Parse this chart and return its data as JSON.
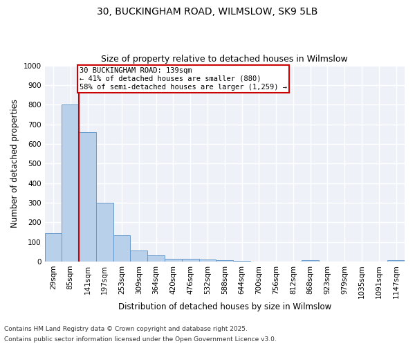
{
  "title_line1": "30, BUCKINGHAM ROAD, WILMSLOW, SK9 5LB",
  "title_line2": "Size of property relative to detached houses in Wilmslow",
  "xlabel": "Distribution of detached houses by size in Wilmslow",
  "ylabel": "Number of detached properties",
  "bin_labels": [
    "29sqm",
    "85sqm",
    "141sqm",
    "197sqm",
    "253sqm",
    "309sqm",
    "364sqm",
    "420sqm",
    "476sqm",
    "532sqm",
    "588sqm",
    "644sqm",
    "700sqm",
    "756sqm",
    "812sqm",
    "868sqm",
    "923sqm",
    "979sqm",
    "1035sqm",
    "1091sqm",
    "1147sqm"
  ],
  "bar_heights": [
    145,
    800,
    660,
    300,
    135,
    55,
    30,
    15,
    15,
    10,
    5,
    2,
    1,
    1,
    0,
    8,
    0,
    0,
    0,
    0,
    5
  ],
  "bar_color": "#b8d0ea",
  "bar_edge_color": "#6699cc",
  "property_line_x": 1.5,
  "property_line_color": "#cc0000",
  "annotation_text": "30 BUCKINGHAM ROAD: 139sqm\n← 41% of detached houses are smaller (880)\n58% of semi-detached houses are larger (1,259) →",
  "annotation_box_color": "#ffffff",
  "annotation_box_edge": "#cc0000",
  "ylim": [
    0,
    1000
  ],
  "yticks": [
    0,
    100,
    200,
    300,
    400,
    500,
    600,
    700,
    800,
    900,
    1000
  ],
  "background_color": "#eef2f8",
  "footer_line1": "Contains HM Land Registry data © Crown copyright and database right 2025.",
  "footer_line2": "Contains public sector information licensed under the Open Government Licence v3.0.",
  "title_fontsize": 10,
  "subtitle_fontsize": 9,
  "axis_label_fontsize": 8.5,
  "tick_fontsize": 7.5,
  "annotation_fontsize": 7.5,
  "footer_fontsize": 6.5
}
